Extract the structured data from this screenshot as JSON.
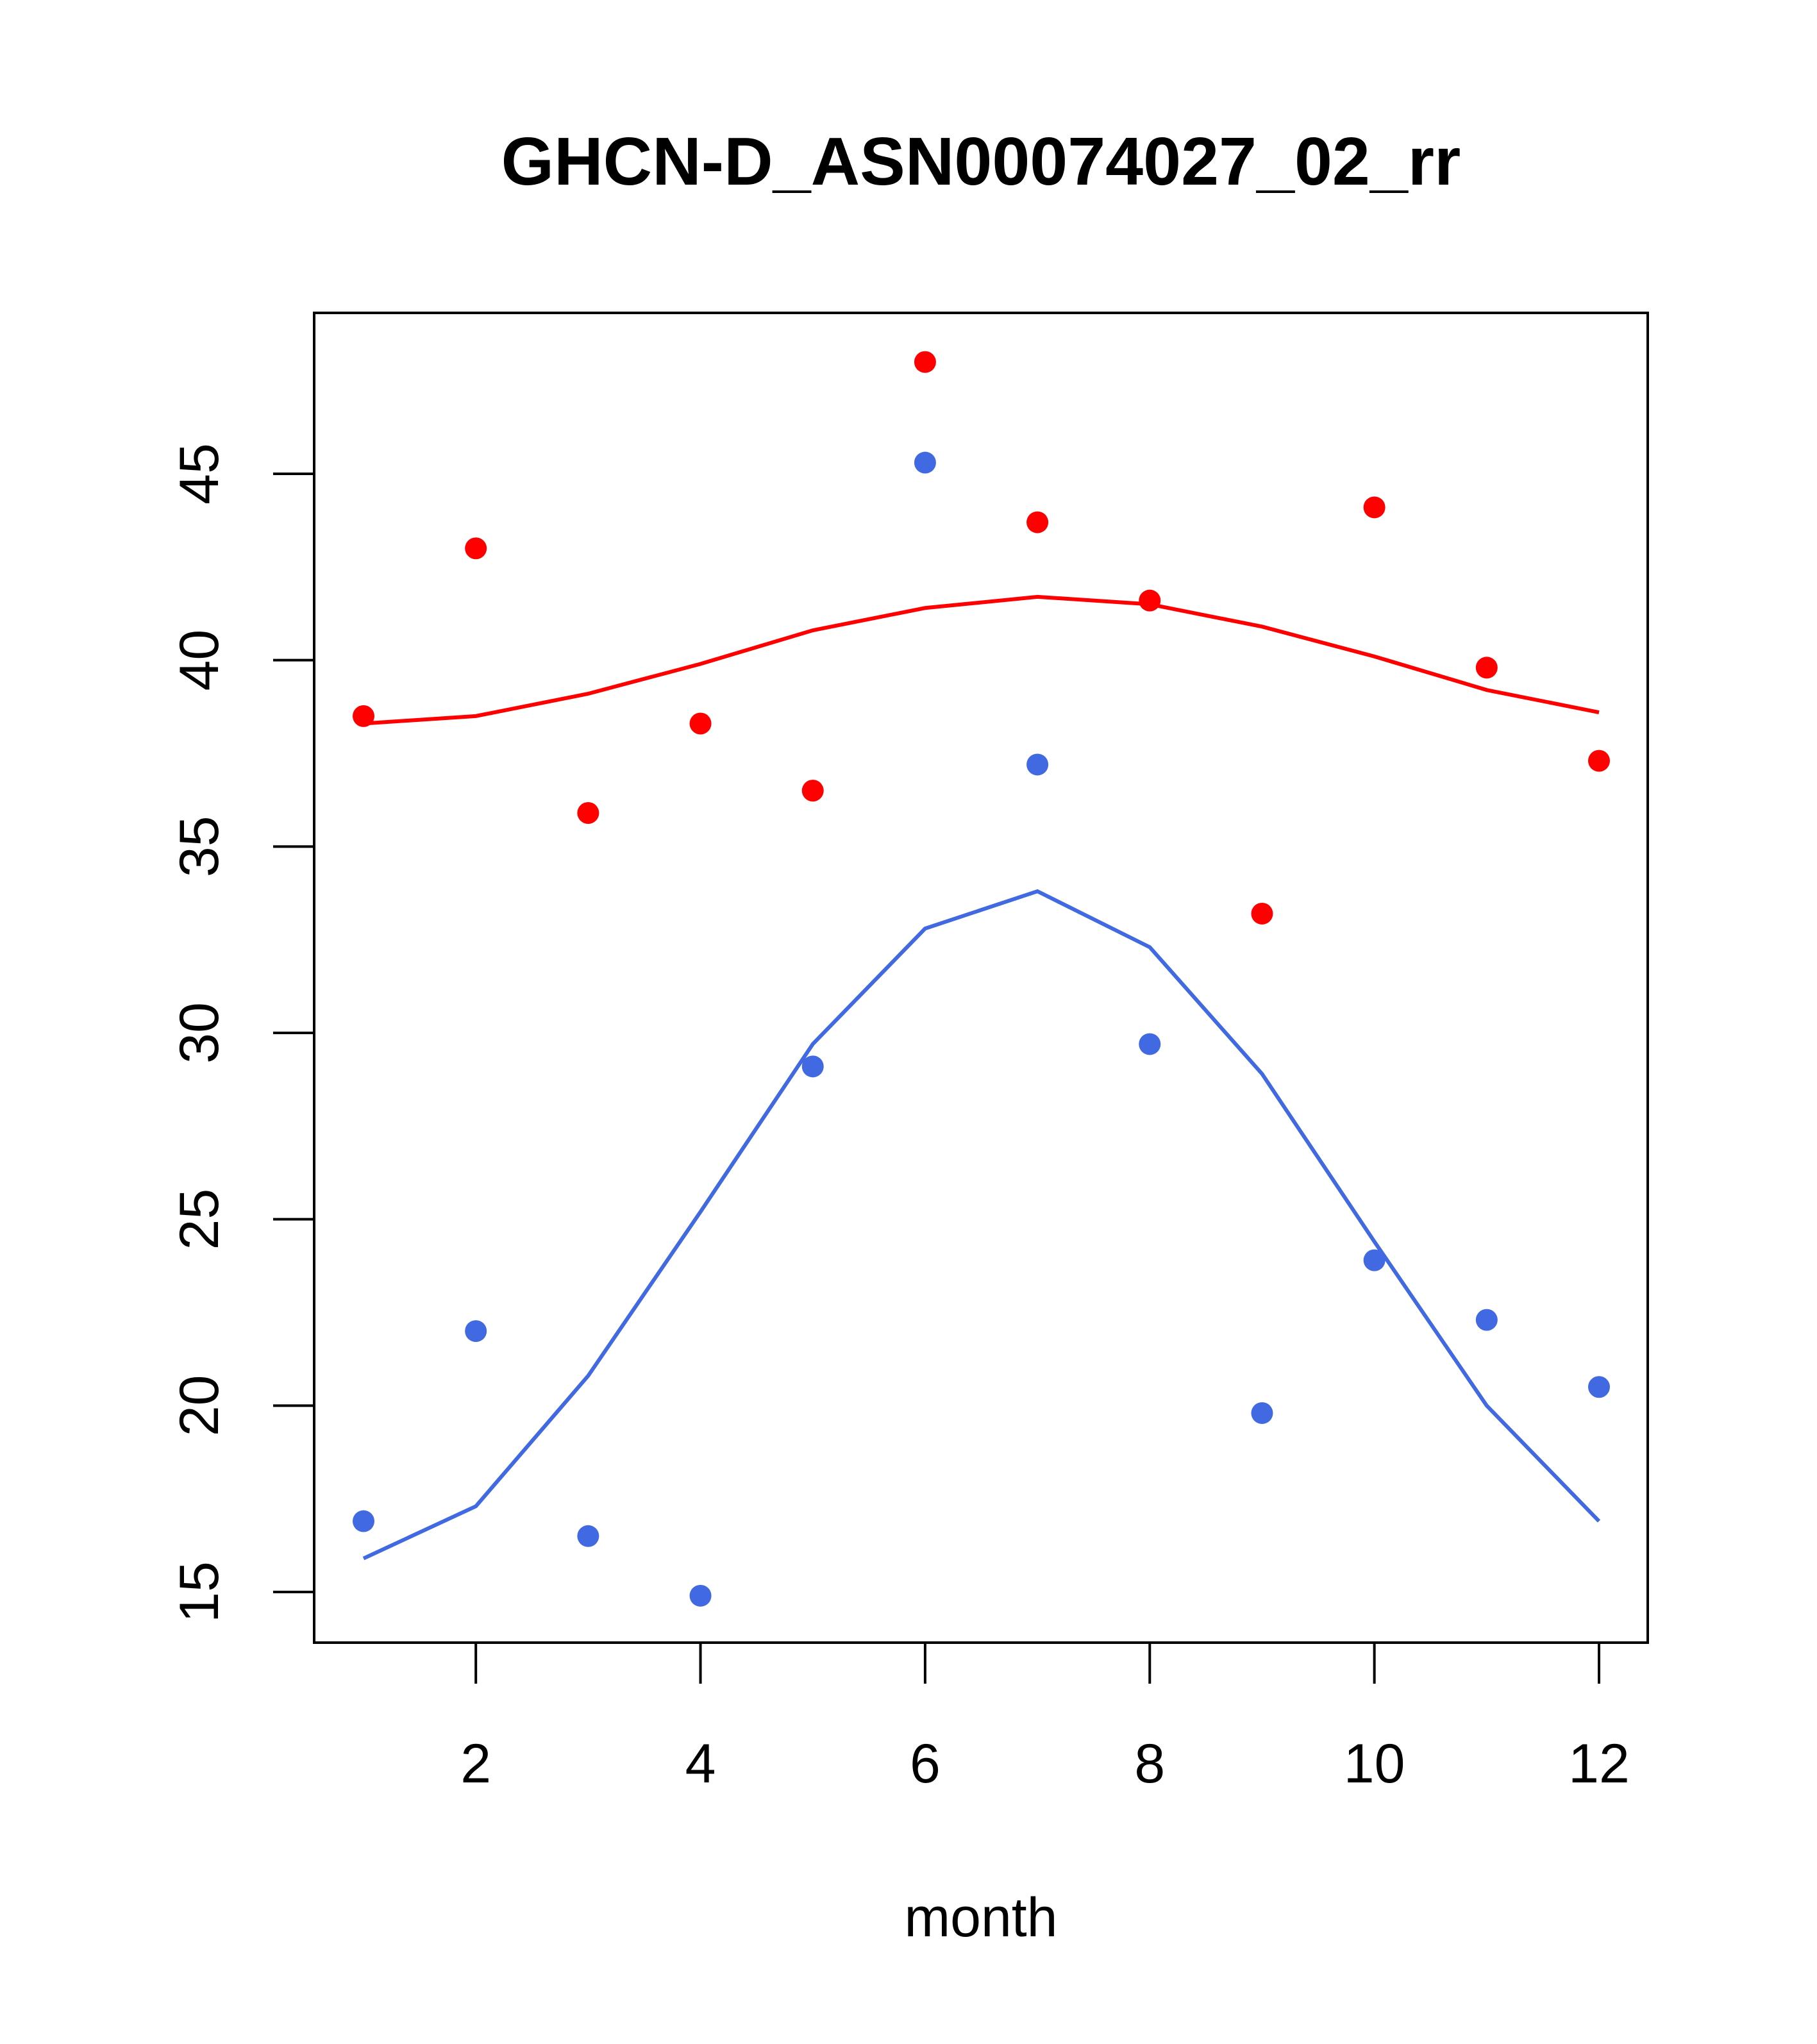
{
  "chart_data": {
    "type": "scatter",
    "title": "GHCN-D_ASN00074027_02_rr",
    "xlabel": "month",
    "ylabel": "",
    "xlim": [
      0.56,
      12.44
    ],
    "ylim": [
      13.7,
      49.4
    ],
    "xticks": [
      2,
      4,
      6,
      8,
      10,
      12
    ],
    "yticks": [
      15,
      20,
      25,
      30,
      35,
      40,
      45
    ],
    "grid": false,
    "x": [
      1,
      2,
      3,
      4,
      5,
      6,
      7,
      8,
      9,
      10,
      11,
      12
    ],
    "series": [
      {
        "name": "red points",
        "kind": "points",
        "color": "#FF0000",
        "values": [
          38.5,
          43.0,
          35.9,
          38.3,
          36.5,
          48.0,
          43.7,
          41.6,
          33.2,
          44.1,
          39.8,
          37.3
        ]
      },
      {
        "name": "red fit",
        "kind": "line",
        "color": "#FF0000",
        "values": [
          38.3,
          38.5,
          39.1,
          39.9,
          40.8,
          41.4,
          41.7,
          41.5,
          40.9,
          40.1,
          39.2,
          38.6
        ]
      },
      {
        "name": "blue points",
        "kind": "points",
        "color": "#4169E1",
        "values": [
          16.9,
          22.0,
          16.5,
          14.9,
          29.1,
          45.3,
          37.2,
          29.7,
          19.8,
          23.9,
          22.3,
          20.5
        ]
      },
      {
        "name": "blue fit",
        "kind": "line",
        "color": "#4169E1",
        "values": [
          15.9,
          17.3,
          20.8,
          25.2,
          29.7,
          32.8,
          33.8,
          32.3,
          28.9,
          24.4,
          20.0,
          16.9
        ]
      }
    ]
  }
}
